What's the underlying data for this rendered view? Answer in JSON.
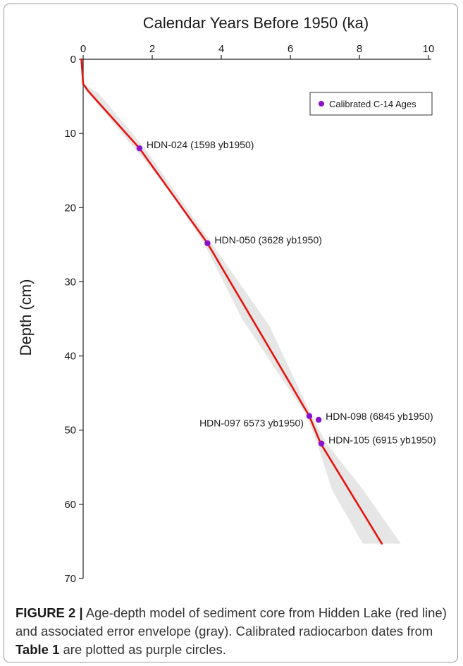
{
  "chart_data": {
    "type": "line",
    "title": "Calendar Years Before 1950 (ka)",
    "xlabel": "Calendar Years Before 1950 (ka)",
    "ylabel": "Depth (cm)",
    "xlim": [
      0,
      10
    ],
    "ylim": [
      0,
      70
    ],
    "x_axis_position": "top",
    "y_inverted": true,
    "grid": false,
    "x_ticks": [
      0,
      2,
      4,
      6,
      8,
      10
    ],
    "y_ticks": [
      0,
      10,
      20,
      30,
      40,
      50,
      60,
      70
    ],
    "legend": {
      "placement": "top-right",
      "entries": [
        "Calibrated C-14 Ages"
      ]
    },
    "model_line": {
      "color": "#e8120c",
      "points": [
        {
          "age": -0.05,
          "depth": 0
        },
        {
          "age": -0.02,
          "depth": 2
        },
        {
          "age": 0.0,
          "depth": 3.3
        },
        {
          "age": 0.15,
          "depth": 4.3
        },
        {
          "age": 1.63,
          "depth": 12
        },
        {
          "age": 3.6,
          "depth": 24.8
        },
        {
          "age": 6.55,
          "depth": 48.1
        },
        {
          "age": 6.88,
          "depth": 51.8
        },
        {
          "age": 8.65,
          "depth": 65.3
        }
      ]
    },
    "error_envelope": {
      "color": "#e6e6e6",
      "upper": [
        {
          "age": -0.05,
          "depth": 0
        },
        {
          "age": 0.0,
          "depth": 3.3
        },
        {
          "age": 0.45,
          "depth": 4.6
        },
        {
          "age": 1.78,
          "depth": 12
        },
        {
          "age": 3.72,
          "depth": 24.8
        },
        {
          "age": 5.4,
          "depth": 36
        },
        {
          "age": 6.62,
          "depth": 48.1
        },
        {
          "age": 7.05,
          "depth": 51.8
        },
        {
          "age": 8.1,
          "depth": 58
        },
        {
          "age": 9.2,
          "depth": 65.3
        }
      ],
      "lower": [
        {
          "age": 8.1,
          "depth": 65.3
        },
        {
          "age": 7.2,
          "depth": 58
        },
        {
          "age": 6.78,
          "depth": 51.8
        },
        {
          "age": 6.48,
          "depth": 48.1
        },
        {
          "age": 4.6,
          "depth": 35
        },
        {
          "age": 3.5,
          "depth": 24.8
        },
        {
          "age": 2.4,
          "depth": 17
        },
        {
          "age": 1.48,
          "depth": 12
        },
        {
          "age": 0.05,
          "depth": 4
        },
        {
          "age": -0.05,
          "depth": 0
        }
      ]
    },
    "calibrated_ages": {
      "color": "#8b12cc",
      "points": [
        {
          "age": 1.63,
          "depth": 12,
          "label": "HDN-024 (1598 yb1950)",
          "label_side": "right"
        },
        {
          "age": 3.6,
          "depth": 24.8,
          "label": "HDN-050 (3628 yb1950)",
          "label_side": "right"
        },
        {
          "age": 6.55,
          "depth": 48.1,
          "label": "HDN-097 6573 yb1950)",
          "label_side": "left"
        },
        {
          "age": 6.82,
          "depth": 48.6,
          "label": "HDN-098 (6845 yb1950)",
          "label_side": "right"
        },
        {
          "age": 6.9,
          "depth": 51.8,
          "label": "HDN-105 (6915 yb1950)",
          "label_side": "right"
        }
      ]
    }
  },
  "caption": {
    "figure_label": "FIGURE 2 |",
    "text_1": " Age-depth model of sediment core from Hidden Lake (red line) and associated error envelope (gray). Calibrated radiocarbon dates from ",
    "table_ref": "Table 1",
    "text_2": " are plotted as purple circles."
  }
}
